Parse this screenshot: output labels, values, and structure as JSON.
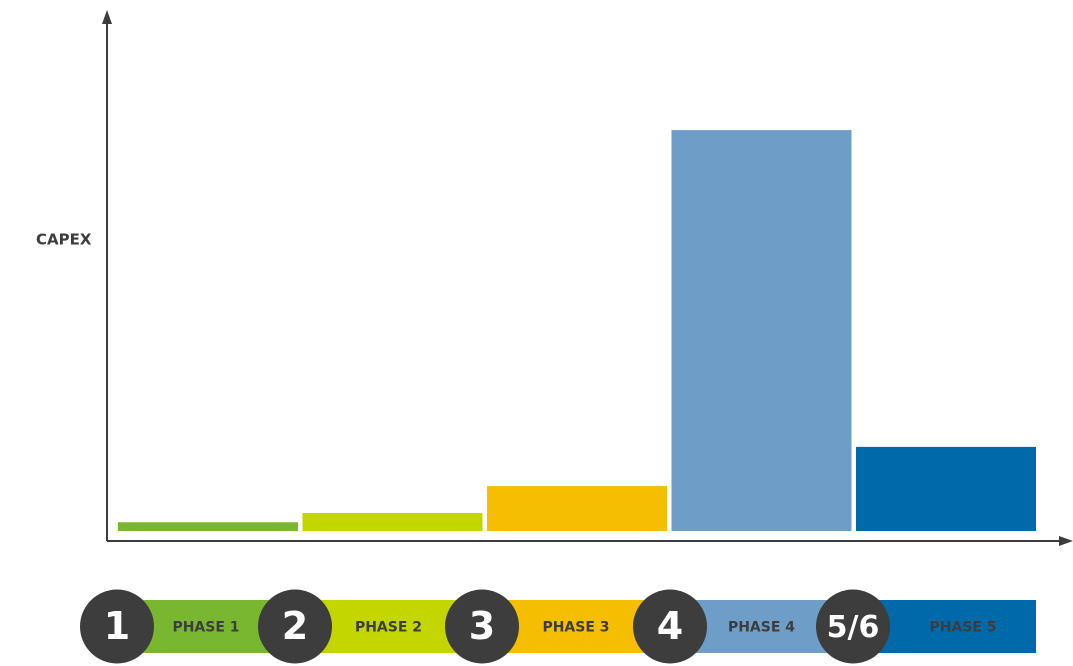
{
  "chart_data": {
    "type": "bar",
    "y_label": "CAPEX",
    "categories": [
      "PHASE 1",
      "PHASE 2",
      "PHASE 3",
      "PHASE 4",
      "PHASE 5"
    ],
    "badges": [
      "1",
      "2",
      "3",
      "4",
      "5/6"
    ],
    "values": [
      1.7,
      3.5,
      8.7,
      77.7,
      16.3
    ],
    "colors": [
      "#7ab730",
      "#c4d600",
      "#f5be00",
      "#6e9ec8",
      "#0069aa"
    ],
    "ylim": [
      0,
      100
    ]
  }
}
